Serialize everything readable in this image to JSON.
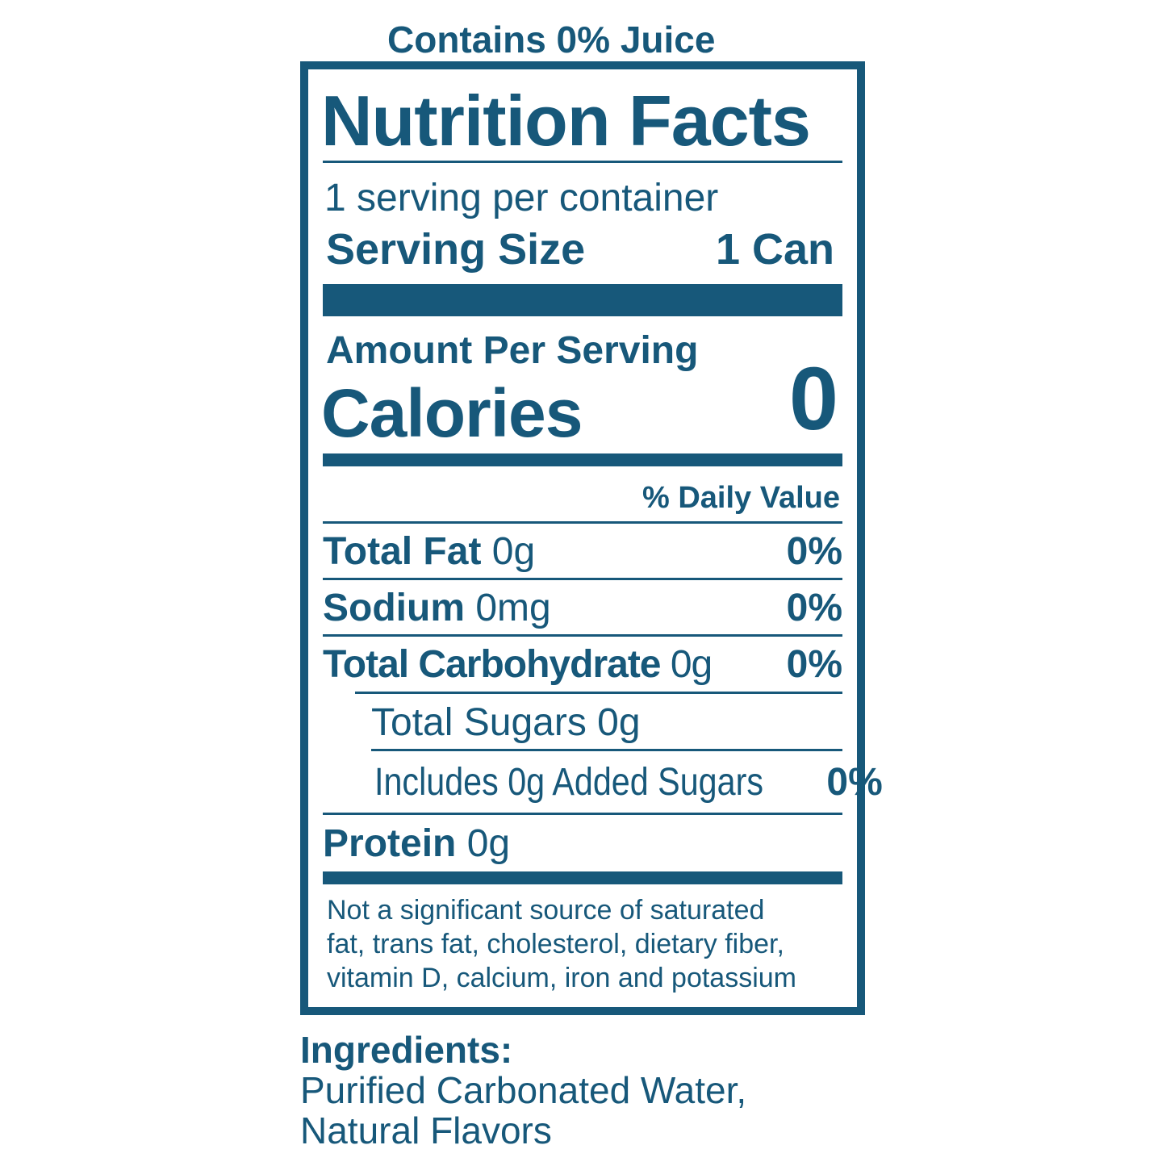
{
  "header_note": "Contains 0% Juice",
  "title": "Nutrition Facts",
  "servings_per_container": "1 serving per container",
  "serving_size": {
    "label": "Serving Size",
    "value": "1 Can"
  },
  "amount_per_serving": "Amount Per Serving",
  "calories": {
    "label": "Calories",
    "value": "0"
  },
  "daily_value_header": "% Daily Value",
  "nutrients": [
    {
      "name": "Total Fat",
      "amount": "0g",
      "dv": "0%"
    },
    {
      "name": "Sodium",
      "amount": "0mg",
      "dv": "0%"
    },
    {
      "name": "Total Carbohydrate",
      "amount": "0g",
      "dv": "0%"
    },
    {
      "name": "Total Sugars 0g"
    },
    {
      "name": "Includes 0g Added Sugars",
      "dv": "0%"
    },
    {
      "name": "Protein",
      "amount": "0g"
    }
  ],
  "footnote": [
    "Not a significant source of saturated",
    "fat, trans fat, cholesterol, dietary fiber,",
    "vitamin D, calcium, iron and potassium"
  ],
  "ingredients": {
    "label": "Ingredients:",
    "lines": [
      "Purified Carbonated Water,",
      "Natural Flavors"
    ]
  },
  "colors": {
    "label": "#17587a",
    "background": "#ffffff"
  }
}
